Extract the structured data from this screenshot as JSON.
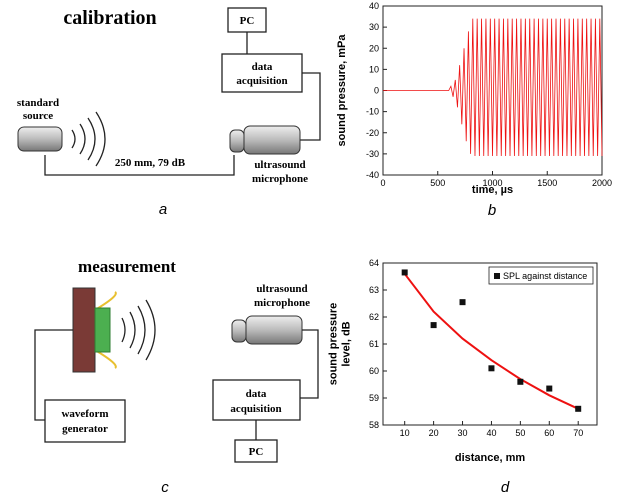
{
  "diagrams": {
    "a": {
      "title": "calibration",
      "pc": "PC",
      "daq": [
        "data",
        "acquisition"
      ],
      "source": [
        "standard",
        "source"
      ],
      "distance": "250 mm, 79 dB",
      "mic": [
        "ultrasound",
        "microphone"
      ],
      "label": "a"
    },
    "c": {
      "title": "measurement",
      "mic": [
        "ultrasound",
        "microphone"
      ],
      "daq": [
        "data",
        "acquisition"
      ],
      "generator": [
        "waveform",
        "generator"
      ],
      "pc": "PC",
      "label": "c"
    }
  },
  "chart_data": [
    {
      "type": "line",
      "panel_label": "b",
      "xlabel": "time, µs",
      "ylabel": "sound pressure, mPa",
      "color": "#ee1111",
      "x": [
        0,
        100,
        200,
        300,
        400,
        500,
        600,
        620,
        640,
        660,
        680,
        700,
        720,
        740,
        760,
        780,
        800,
        820,
        840,
        860,
        880,
        900,
        920,
        940,
        960,
        980,
        1000,
        1020,
        1040,
        1060,
        1080,
        1100,
        1120,
        1140,
        1160,
        1180,
        1200,
        1220,
        1240,
        1260,
        1280,
        1300,
        1320,
        1340,
        1360,
        1380,
        1400,
        1420,
        1440,
        1460,
        1480,
        1500,
        1520,
        1540,
        1560,
        1580,
        1600,
        1620,
        1640,
        1660,
        1680,
        1700,
        1720,
        1740,
        1760,
        1780,
        1800,
        1820,
        1840,
        1860,
        1880,
        1900,
        1920,
        1940,
        1960,
        1980,
        2000
      ],
      "values": [
        0,
        0,
        0,
        0,
        0,
        0,
        0,
        2,
        -3,
        5,
        -8,
        12,
        -16,
        20,
        -24,
        28,
        -30,
        34,
        -31,
        34,
        -31,
        34,
        -31,
        34,
        -31,
        34,
        -31,
        34,
        -31,
        34,
        -31,
        34,
        -31,
        34,
        -31,
        34,
        -31,
        34,
        -31,
        34,
        -31,
        34,
        -31,
        34,
        -31,
        34,
        -31,
        34,
        -31,
        34,
        -31,
        34,
        -31,
        34,
        -31,
        34,
        -31,
        34,
        -31,
        34,
        -31,
        34,
        -31,
        34,
        -31,
        34,
        -31,
        34,
        -31,
        34,
        -31,
        34,
        -31,
        34,
        -31,
        34,
        -31
      ],
      "xlim": [
        0,
        2000
      ],
      "xticks": [
        0,
        500,
        1000,
        1500,
        2000
      ],
      "ylim": [
        -40,
        40
      ],
      "yticks": [
        -40,
        -30,
        -20,
        -10,
        0,
        10,
        20,
        30,
        40
      ]
    },
    {
      "type": "scatter",
      "panel_label": "d",
      "xlabel": "distance, mm",
      "ylabel": [
        "sound pressure",
        "level, dB"
      ],
      "series": [
        {
          "name": "SPL against distance",
          "color": "#111111",
          "x": [
            10,
            20,
            30,
            40,
            50,
            60,
            70
          ],
          "values": [
            63.65,
            61.7,
            62.55,
            60.1,
            59.6,
            59.35,
            58.6
          ]
        }
      ],
      "fit": {
        "color": "#ee1111",
        "x": [
          10,
          20,
          30,
          40,
          50,
          60,
          70
        ],
        "values": [
          63.6,
          62.2,
          61.2,
          60.4,
          59.7,
          59.1,
          58.6
        ]
      },
      "xlim": [
        2.5,
        76.5
      ],
      "xticks": [
        10,
        20,
        30,
        40,
        50,
        60,
        70
      ],
      "ylim": [
        58,
        64
      ],
      "yticks": [
        58,
        59,
        60,
        61,
        62,
        63,
        64
      ],
      "legend": "upper right"
    }
  ]
}
